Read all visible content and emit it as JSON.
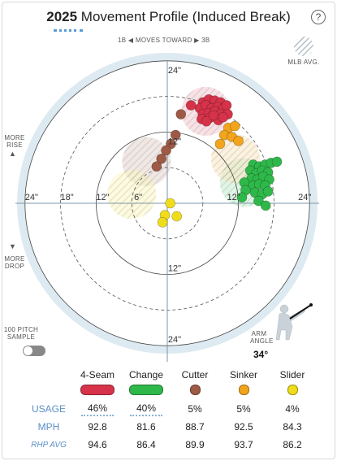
{
  "header": {
    "year": "2025",
    "title_rest": "Movement Profile (Induced Break)",
    "help": "?"
  },
  "direction": {
    "left": "1B",
    "text": "MOVES TOWARD",
    "right": "3B"
  },
  "legend_mlb": "MLB AVG.",
  "left_labels": {
    "rise": "MORE\nRISE",
    "drop": "MORE\nDROP"
  },
  "sample": {
    "label": "100 PITCH\nSAMPLE",
    "enabled": false
  },
  "arm_angle": {
    "label": "ARM\nANGLE",
    "value": "34°"
  },
  "chart_data": {
    "type": "scatter",
    "x_unit": "inches horizontal break",
    "y_unit": "inches induced vertical break",
    "rings": [
      6,
      12,
      18,
      24
    ],
    "axis_ticks": {
      "x_left": [
        "24\"",
        "18\"",
        "12\"",
        "6\""
      ],
      "x_right": [
        "12\"",
        "24\""
      ],
      "y_top": [
        "24\"",
        "12\""
      ],
      "y_bottom": [
        "12\"",
        "24\""
      ]
    },
    "series": [
      {
        "name": "4-Seam",
        "color": "#d6334a",
        "avg": [
          6.5,
          15.5
        ],
        "points": [
          [
            6.0,
            17.0
          ],
          [
            7.0,
            17.5
          ],
          [
            8.0,
            17.3
          ],
          [
            9.0,
            17.0
          ],
          [
            5.5,
            16.0
          ],
          [
            6.5,
            16.5
          ],
          [
            7.5,
            16.0
          ],
          [
            8.5,
            16.2
          ],
          [
            9.5,
            16.0
          ],
          [
            6.0,
            15.0
          ],
          [
            7.0,
            15.2
          ],
          [
            8.0,
            15.5
          ],
          [
            9.0,
            15.0
          ],
          [
            5.8,
            14.2
          ],
          [
            7.2,
            14.4
          ],
          [
            8.6,
            14.0
          ],
          [
            10.0,
            16.5
          ],
          [
            10.2,
            15.0
          ],
          [
            6.6,
            13.8
          ],
          [
            4.0,
            16.5
          ],
          [
            9.4,
            14.5
          ],
          [
            7.8,
            14.8
          ]
        ]
      },
      {
        "name": "Change",
        "color": "#2fb84a",
        "avg": [
          13.0,
          3.5
        ],
        "points": [
          [
            14.5,
            6.5
          ],
          [
            15.5,
            6.2
          ],
          [
            16.5,
            6.5
          ],
          [
            17.5,
            6.8
          ],
          [
            18.5,
            7.0
          ],
          [
            14.0,
            5.5
          ],
          [
            15.0,
            5.0
          ],
          [
            16.0,
            5.5
          ],
          [
            17.0,
            5.2
          ],
          [
            14.2,
            4.2
          ],
          [
            15.2,
            4.0
          ],
          [
            16.2,
            4.5
          ],
          [
            17.2,
            4.0
          ],
          [
            13.0,
            3.5
          ],
          [
            14.5,
            3.0
          ],
          [
            15.5,
            3.2
          ],
          [
            16.5,
            3.0
          ],
          [
            13.2,
            2.2
          ],
          [
            14.8,
            1.8
          ],
          [
            16.0,
            1.5
          ],
          [
            17.0,
            2.0
          ],
          [
            15.4,
            0.4
          ],
          [
            12.6,
            1.0
          ],
          [
            16.6,
            -0.4
          ]
        ]
      },
      {
        "name": "Cutter",
        "color": "#9e5a45",
        "avg": [
          -3.5,
          7.0
        ],
        "points": [
          [
            2.3,
            15.0
          ],
          [
            1.4,
            11.5
          ],
          [
            0.6,
            10.0
          ],
          [
            -0.2,
            8.9
          ],
          [
            -1.0,
            7.5
          ],
          [
            -1.8,
            6.2
          ]
        ]
      },
      {
        "name": "Sinker",
        "color": "#f2a41c",
        "avg": [
          11.5,
          7.5
        ],
        "points": [
          [
            10.3,
            12.7
          ],
          [
            11.4,
            13.0
          ],
          [
            9.6,
            11.5
          ],
          [
            10.9,
            11.2
          ],
          [
            12.0,
            10.5
          ],
          [
            8.9,
            10.0
          ]
        ]
      },
      {
        "name": "Slider",
        "color": "#f0dd1a",
        "avg": [
          -6.0,
          1.5
        ],
        "points": [
          [
            0.5,
            0.0
          ],
          [
            -0.4,
            -2.0
          ],
          [
            1.6,
            -2.2
          ],
          [
            -0.8,
            -3.2
          ]
        ]
      }
    ],
    "table": {
      "row_labels": [
        "USAGE",
        "MPH",
        "RHP AVG"
      ],
      "columns": [
        {
          "name": "4-Seam",
          "usage": "46%",
          "mph": "92.8",
          "rhp_avg": "94.6"
        },
        {
          "name": "Change",
          "usage": "40%",
          "mph": "81.6",
          "rhp_avg": "86.4"
        },
        {
          "name": "Cutter",
          "usage": "5%",
          "mph": "88.7",
          "rhp_avg": "89.9"
        },
        {
          "name": "Sinker",
          "usage": "5%",
          "mph": "92.5",
          "rhp_avg": "93.7"
        },
        {
          "name": "Slider",
          "usage": "4%",
          "mph": "84.3",
          "rhp_avg": "86.2"
        }
      ]
    }
  }
}
